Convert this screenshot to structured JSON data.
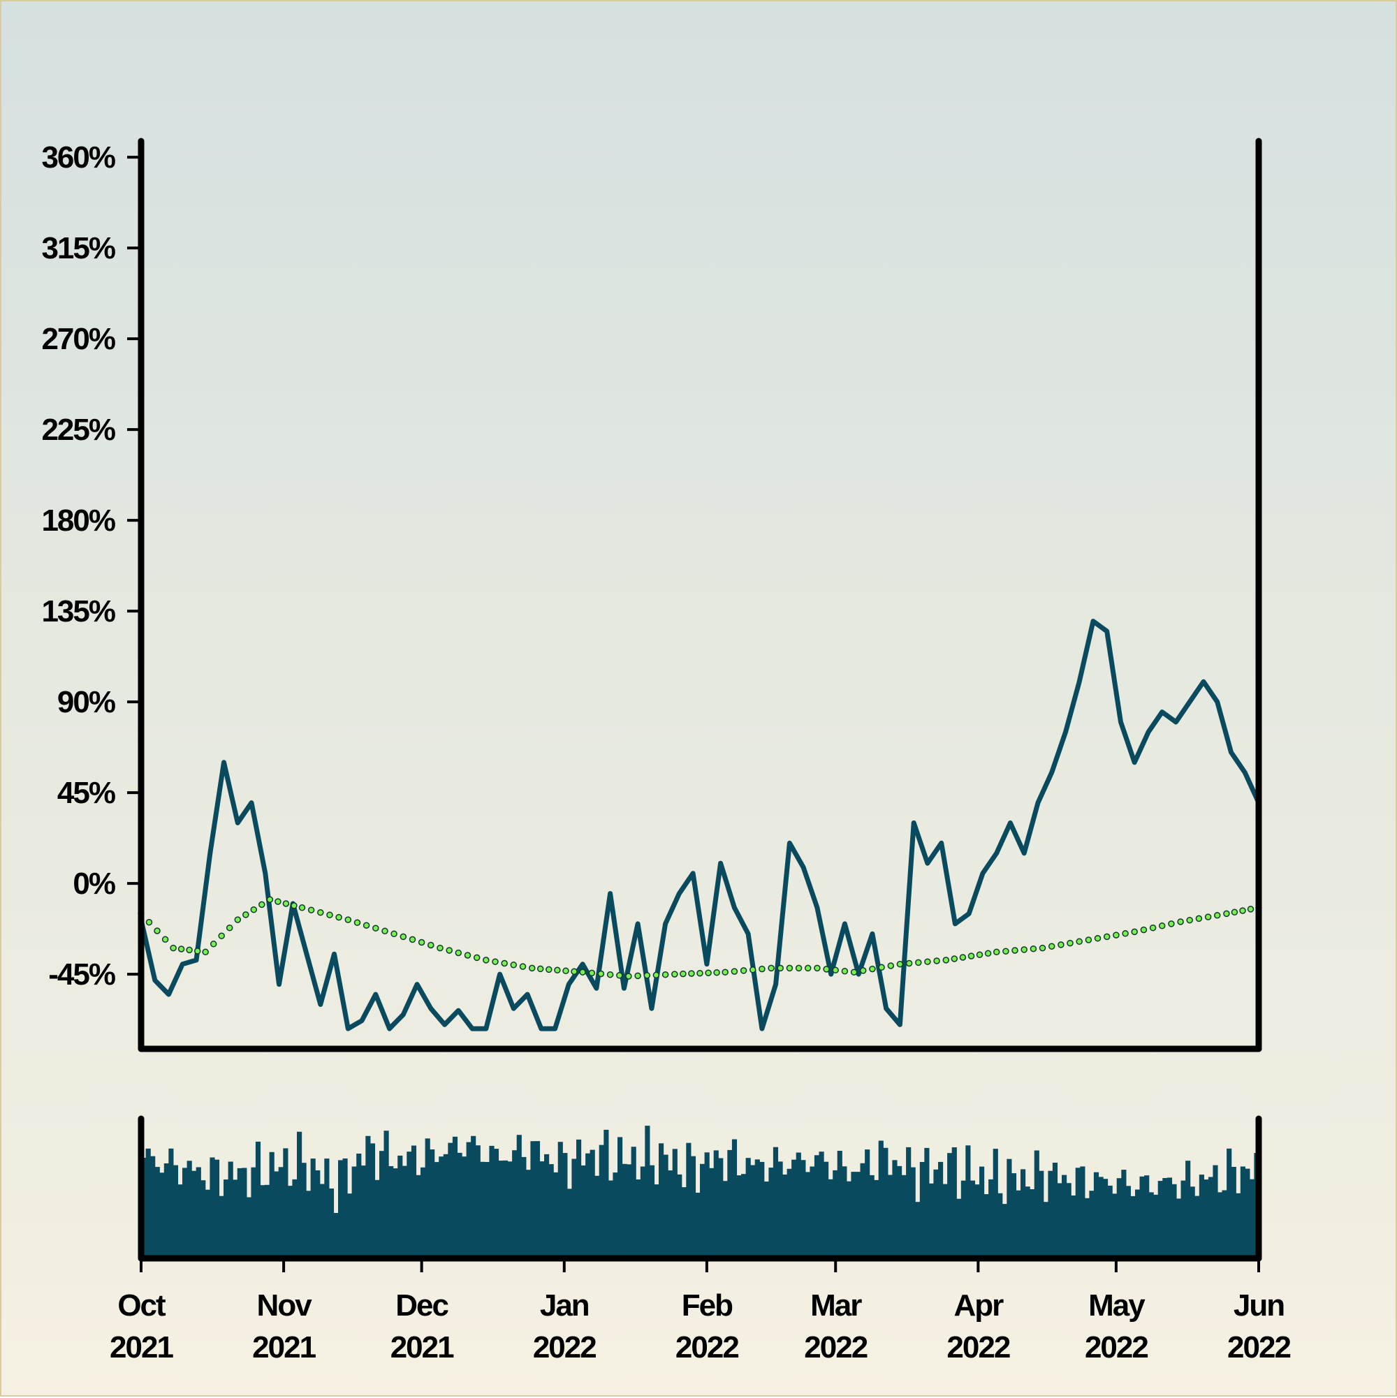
{
  "chart_data": {
    "type": "line",
    "title": "",
    "xlabel": "",
    "ylabel": "",
    "ylim": [
      -82,
      368
    ],
    "xlim": [
      "2021-10-01",
      "2022-06-01"
    ],
    "y_ticks": [
      "-45%",
      "0%",
      "45%",
      "90%",
      "135%",
      "180%",
      "225%",
      "270%",
      "315%",
      "360%"
    ],
    "x_ticks": [
      {
        "month": "Oct",
        "year": "2021",
        "date": "2021-10-01"
      },
      {
        "month": "Nov",
        "year": "2021",
        "date": "2021-11-01"
      },
      {
        "month": "Dec",
        "year": "2021",
        "date": "2021-12-01"
      },
      {
        "month": "Jan",
        "year": "2022",
        "date": "2022-01-01"
      },
      {
        "month": "Feb",
        "year": "2022",
        "date": "2022-02-01"
      },
      {
        "month": "Mar",
        "year": "2022",
        "date": "2022-03-01"
      },
      {
        "month": "Apr",
        "year": "2022",
        "date": "2022-04-01"
      },
      {
        "month": "May",
        "year": "2022",
        "date": "2022-05-01"
      },
      {
        "month": "Jun",
        "year": "2022",
        "date": "2022-06-01"
      }
    ],
    "grid": false,
    "legend": "none",
    "colors": {
      "price": "#0a4a5e",
      "average": "#7cf050",
      "volume": "#0a4a5e",
      "axes": "#000000"
    },
    "series": [
      {
        "kind": "line",
        "x": [
          "2021-10-01",
          "2021-10-04",
          "2021-10-07",
          "2021-10-10",
          "2021-10-13",
          "2021-10-16",
          "2021-10-19",
          "2021-10-22",
          "2021-10-25",
          "2021-10-28",
          "2021-10-31",
          "2021-11-03",
          "2021-11-06",
          "2021-11-09",
          "2021-11-12",
          "2021-11-15",
          "2021-11-18",
          "2021-11-21",
          "2021-11-24",
          "2021-11-27",
          "2021-11-30",
          "2021-12-03",
          "2021-12-06",
          "2021-12-09",
          "2021-12-12",
          "2021-12-15",
          "2021-12-18",
          "2021-12-21",
          "2021-12-24",
          "2021-12-27",
          "2021-12-30",
          "2022-01-02",
          "2022-01-05",
          "2022-01-08",
          "2022-01-11",
          "2022-01-14",
          "2022-01-17",
          "2022-01-20",
          "2022-01-23",
          "2022-01-26",
          "2022-01-29",
          "2022-02-01",
          "2022-02-04",
          "2022-02-07",
          "2022-02-10",
          "2022-02-13",
          "2022-02-16",
          "2022-02-19",
          "2022-02-22",
          "2022-02-25",
          "2022-02-28",
          "2022-03-03",
          "2022-03-06",
          "2022-03-09",
          "2022-03-12",
          "2022-03-15",
          "2022-03-18",
          "2022-03-21",
          "2022-03-24",
          "2022-03-27",
          "2022-03-30",
          "2022-04-02",
          "2022-04-05",
          "2022-04-08",
          "2022-04-11",
          "2022-04-14",
          "2022-04-17",
          "2022-04-20",
          "2022-04-23",
          "2022-04-26",
          "2022-04-29",
          "2022-05-02",
          "2022-05-05",
          "2022-05-08",
          "2022-05-11",
          "2022-05-14",
          "2022-05-17",
          "2022-05-20",
          "2022-05-23",
          "2022-05-26",
          "2022-05-29",
          "2022-06-01"
        ],
        "values": [
          -18,
          -48,
          -55,
          -40,
          -38,
          15,
          60,
          30,
          40,
          5,
          -50,
          -10,
          -35,
          -60,
          -35,
          -72,
          -68,
          -55,
          -72,
          -65,
          -50,
          -62,
          -70,
          -63,
          -72,
          -72,
          -45,
          -62,
          -55,
          -72,
          -72,
          -50,
          -40,
          -52,
          -5,
          -52,
          -20,
          -62,
          -20,
          -5,
          5,
          -40,
          10,
          -12,
          -25,
          -72,
          -50,
          20,
          8,
          -12,
          -45,
          -20,
          -45,
          -25,
          -62,
          -70,
          30,
          10,
          20,
          -20,
          -15,
          5,
          15,
          30,
          15,
          40,
          55,
          75,
          100,
          130,
          125,
          80,
          60,
          75,
          85,
          80,
          90,
          100,
          90,
          65,
          55,
          40
        ]
      },
      {
        "kind": "average",
        "x": [
          "2021-10-01",
          "2021-10-08",
          "2021-10-15",
          "2021-10-22",
          "2021-10-29",
          "2021-11-05",
          "2021-11-15",
          "2021-11-25",
          "2021-12-05",
          "2021-12-15",
          "2021-12-25",
          "2022-01-05",
          "2022-01-15",
          "2022-01-25",
          "2022-02-05",
          "2022-02-15",
          "2022-02-25",
          "2022-03-05",
          "2022-03-15",
          "2022-03-25",
          "2022-04-05",
          "2022-04-15",
          "2022-04-25",
          "2022-05-05",
          "2022-05-15",
          "2022-05-25",
          "2022-06-01"
        ],
        "values": [
          -15,
          -32,
          -34,
          -18,
          -8,
          -12,
          -18,
          -25,
          -32,
          -38,
          -42,
          -44,
          -46,
          -45,
          -44,
          -42,
          -42,
          -44,
          -40,
          -38,
          -34,
          -32,
          -28,
          -24,
          -19,
          -15,
          -12
        ]
      }
    ],
    "volume": {
      "x": [
        "2021-10-01",
        "2021-10-08",
        "2021-10-15",
        "2021-10-22",
        "2021-10-29",
        "2021-11-05",
        "2021-11-12",
        "2021-11-19",
        "2021-11-26",
        "2021-12-03",
        "2021-12-10",
        "2021-12-17",
        "2021-12-24",
        "2021-12-31",
        "2022-01-07",
        "2022-01-14",
        "2022-01-21",
        "2022-01-28",
        "2022-02-04",
        "2022-02-11",
        "2022-02-18",
        "2022-02-25",
        "2022-03-04",
        "2022-03-11",
        "2022-03-18",
        "2022-03-25",
        "2022-04-01",
        "2022-04-08",
        "2022-04-15",
        "2022-04-22",
        "2022-04-29",
        "2022-05-06",
        "2022-05-13",
        "2022-05-20",
        "2022-05-27"
      ],
      "values": [
        0.72,
        0.66,
        0.6,
        0.6,
        0.65,
        0.68,
        0.52,
        0.78,
        0.7,
        0.74,
        0.82,
        0.72,
        0.78,
        0.68,
        0.75,
        0.7,
        0.72,
        0.64,
        0.72,
        0.66,
        0.68,
        0.7,
        0.62,
        0.72,
        0.62,
        0.66,
        0.58,
        0.56,
        0.6,
        0.55,
        0.55,
        0.52,
        0.54,
        0.56,
        0.62
      ]
    }
  }
}
